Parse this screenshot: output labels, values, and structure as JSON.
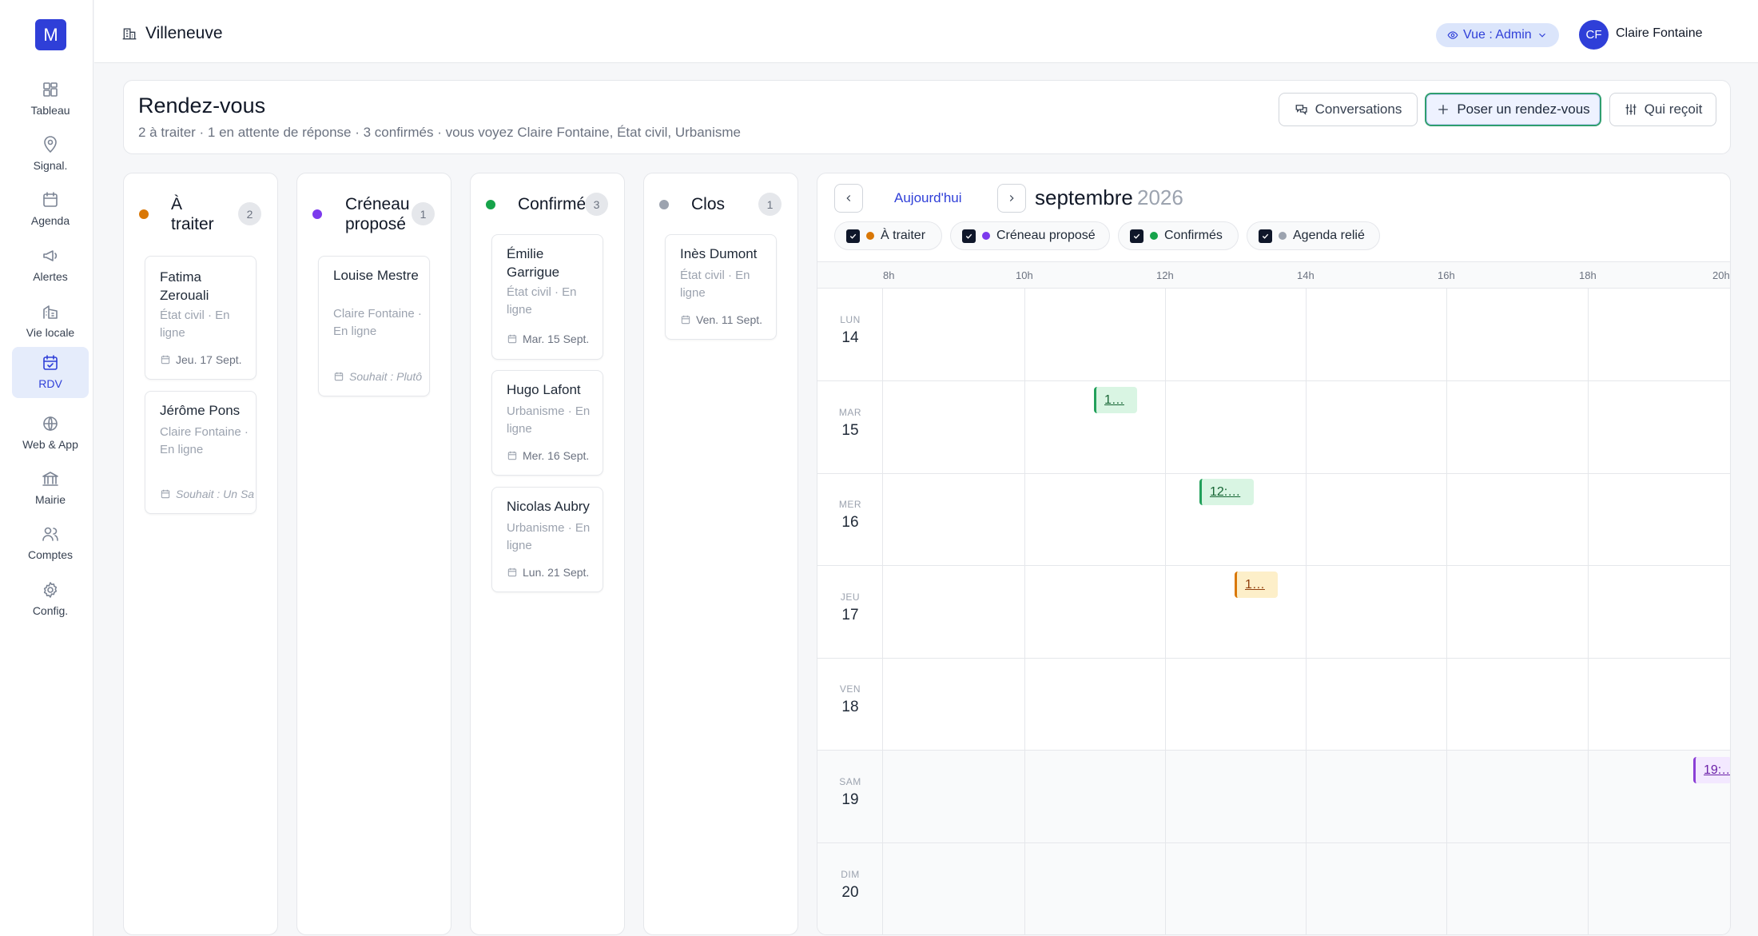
{
  "app": {
    "logo": "M",
    "town": "Villeneuve"
  },
  "sidebar": {
    "items": [
      {
        "label": "Tableau",
        "icon": "dashboard-icon"
      },
      {
        "label": "Signal.",
        "icon": "map-pin-icon"
      },
      {
        "label": "Agenda",
        "icon": "calendar-icon"
      },
      {
        "label": "Alertes",
        "icon": "megaphone-icon"
      },
      {
        "label": "Vie locale",
        "icon": "buildings-icon"
      },
      {
        "label": "RDV",
        "icon": "calendar-check-icon",
        "active": true
      },
      {
        "label": "Web & App",
        "icon": "globe-icon"
      },
      {
        "label": "Mairie",
        "icon": "landmark-icon"
      },
      {
        "label": "Comptes",
        "icon": "users-icon"
      },
      {
        "label": "Config.",
        "icon": "gear-icon"
      }
    ]
  },
  "topbar": {
    "view_label": "Vue : Admin",
    "user_initials": "CF",
    "user_name": "Claire Fontaine"
  },
  "header": {
    "title": "Rendez-vous",
    "subtitle": "2 à traiter · 1 en attente de réponse · 3 confirmés · vous voyez Claire Fontaine, État civil, Urbanisme",
    "btn_conversations": "Conversations",
    "btn_new": "Poser un rendez-vous",
    "btn_who": "Qui reçoit"
  },
  "colors": {
    "orange": "#d97706",
    "purple": "#7c3aed",
    "green": "#16a34a",
    "gray": "#9ca3af",
    "accent": "#2f3fd8"
  },
  "kanban": {
    "columns": [
      {
        "title_line1": "À",
        "title_line2": "traiter",
        "count": "2",
        "color": "#d97706",
        "cards": [
          {
            "name": "Fatima Zerouali",
            "meta": "État civil · En ligne",
            "date": "Jeu. 17 Sept.",
            "wish": false
          },
          {
            "name": "Jérôme Pons",
            "meta": "Claire Fontaine · En ligne",
            "date": "Souhait : Un Sa",
            "wish": true
          }
        ]
      },
      {
        "title_line1": "Créneau",
        "title_line2": "proposé",
        "count": "1",
        "color": "#7c3aed",
        "cards": [
          {
            "name": "Louise Mestre",
            "meta": "Claire Fontaine · En ligne",
            "date": "Souhait : Plutô",
            "wish": true
          }
        ]
      },
      {
        "title_line1": "Confirmés",
        "title_line2": "",
        "count": "3",
        "color": "#16a34a",
        "cards": [
          {
            "name": "Émilie Garrigue",
            "meta": "État civil · En ligne",
            "date": "Mar. 15 Sept.",
            "wish": false
          },
          {
            "name": "Hugo Lafont",
            "meta": "Urbanisme · En ligne",
            "date": "Mer. 16 Sept.",
            "wish": false
          },
          {
            "name": "Nicolas Aubry",
            "meta": "Urbanisme · En ligne",
            "date": "Lun. 21 Sept.",
            "wish": false
          }
        ]
      },
      {
        "title_line1": "Clos",
        "title_line2": "",
        "count": "1",
        "color": "#9ca3af",
        "cards": [
          {
            "name": "Inès Dumont",
            "meta": "État civil · En ligne",
            "date": "Ven. 11 Sept.",
            "wish": false
          }
        ]
      }
    ]
  },
  "calendar": {
    "today_label": "Aujourd'hui",
    "month": "septembre",
    "year": "2026",
    "filters": [
      {
        "label": "À traiter",
        "color": "#d97706"
      },
      {
        "label": "Créneau proposé",
        "color": "#7c3aed"
      },
      {
        "label": "Confirmés",
        "color": "#16a34a"
      },
      {
        "label": "Agenda relié",
        "color": "#9ca3af"
      }
    ],
    "hours": [
      "8h",
      "10h",
      "12h",
      "14h",
      "16h",
      "18h",
      "20h"
    ],
    "days": [
      {
        "dow": "LUN",
        "num": "14",
        "weekend": false
      },
      {
        "dow": "MAR",
        "num": "15",
        "weekend": false
      },
      {
        "dow": "MER",
        "num": "16",
        "weekend": false
      },
      {
        "dow": "JEU",
        "num": "17",
        "weekend": false
      },
      {
        "dow": "VEN",
        "num": "18",
        "weekend": false
      },
      {
        "dow": "SAM",
        "num": "19",
        "weekend": true
      },
      {
        "dow": "DIM",
        "num": "20",
        "weekend": true
      }
    ],
    "events": [
      {
        "label": "1…",
        "day": 1,
        "status": "green"
      },
      {
        "label": "12:…",
        "day": 2,
        "status": "green"
      },
      {
        "label": "1…",
        "day": 3,
        "status": "orange"
      },
      {
        "label": "19:…",
        "day": 5,
        "status": "purple"
      }
    ]
  }
}
